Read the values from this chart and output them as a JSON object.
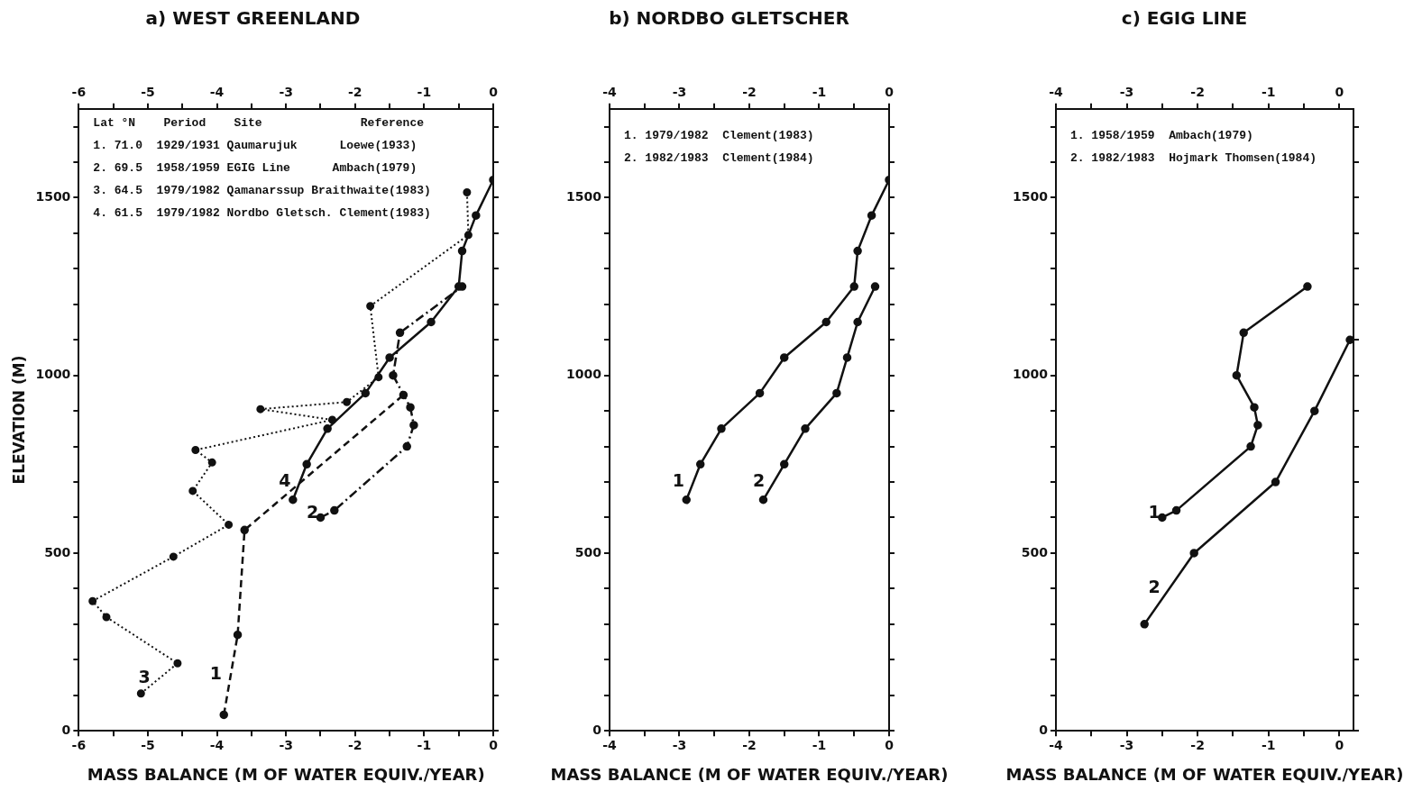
{
  "chart_data": [
    {
      "type": "line",
      "title": "a) WEST GREENLAND",
      "xlabel": "MASS BALANCE (M OF WATER EQUIV./YEAR)",
      "ylabel": "ELEVATION (M)",
      "marker": "circle",
      "xlim": [
        -6,
        0
      ],
      "xticks": [
        -6,
        {
          "value": -5.5,
          "label": null
        },
        -5,
        {
          "value": -4.5,
          "label": null
        },
        -4,
        {
          "value": -3.5,
          "label": null
        },
        -3,
        {
          "value": -2.5,
          "label": null
        },
        -2,
        {
          "value": -1.5,
          "label": null
        },
        -1,
        {
          "value": -0.5,
          "label": null
        },
        0
      ],
      "x2lim": [
        -6,
        0
      ],
      "x2ticks": [
        -6,
        {
          "value": -5.5,
          "label": null
        },
        -5,
        {
          "value": -4.5,
          "label": null
        },
        -4,
        {
          "value": -3.5,
          "label": null
        },
        -3,
        {
          "value": -2.5,
          "label": null
        },
        -2,
        {
          "value": -1.5,
          "label": null
        },
        -1,
        {
          "value": -0.5,
          "label": null
        },
        0
      ],
      "ylim": [
        0,
        1750
      ],
      "yticks": [
        0,
        {
          "value": 100,
          "label": null
        },
        {
          "value": 200,
          "label": null
        },
        {
          "value": 300,
          "label": null
        },
        {
          "value": 400,
          "label": null
        },
        500,
        {
          "value": 600,
          "label": null
        },
        {
          "value": 700,
          "label": null
        },
        {
          "value": 800,
          "label": null
        },
        {
          "value": 900,
          "label": null
        },
        1000,
        {
          "value": 1100,
          "label": null
        },
        {
          "value": 1200,
          "label": null
        },
        {
          "value": 1300,
          "label": null
        },
        {
          "value": 1400,
          "label": null
        },
        1500,
        {
          "value": 1600,
          "label": null
        },
        {
          "value": 1700,
          "label": null
        }
      ],
      "series": [
        {
          "name": "1",
          "color": "#111111",
          "line_style": "dashed",
          "x": [
            -3.9,
            -3.7,
            -3.6,
            -1.3
          ],
          "values": [
            45,
            270,
            565,
            945
          ]
        },
        {
          "name": "2",
          "color": "#111111",
          "line_style": "dashdot",
          "x": [
            -2.5,
            -2.3,
            -1.25,
            -1.15,
            -1.2,
            -1.45,
            -1.35,
            -0.45
          ],
          "values": [
            600,
            620,
            800,
            860,
            910,
            1000,
            1120,
            1250
          ]
        },
        {
          "name": "3",
          "color": "#111111",
          "line_style": "dotted",
          "x": [
            -5.1,
            -4.57,
            -5.6,
            -5.8,
            -4.63,
            -3.83,
            -4.35,
            -4.07,
            -4.31,
            -2.33,
            -3.37,
            -2.12,
            -1.66,
            -1.78,
            -0.36,
            -0.38
          ],
          "values": [
            105,
            190,
            320,
            365,
            490,
            580,
            675,
            755,
            790,
            875,
            905,
            925,
            995,
            1195,
            1395,
            1515
          ]
        },
        {
          "name": "4",
          "color": "#111111",
          "line_style": "solid",
          "x": [
            0,
            -0.25,
            -0.45,
            -0.5,
            -0.9,
            -1.5,
            -1.85,
            -2.4,
            -2.7,
            -2.9
          ],
          "values": [
            1550,
            1450,
            1350,
            1250,
            1150,
            1050,
            950,
            850,
            750,
            650
          ]
        }
      ],
      "annotations": [
        "Lat °N    Period    Site              Reference",
        "1. 71.0  1929/1931 Qaumarujuk      Loewe(1933)",
        "2. 69.5  1958/1959 EGIG Line      Ambach(1979)",
        "3. 64.5  1979/1982 Qamanarssup Braithwaite(1983)",
        "4. 61.5  1979/1982 Nordbo Gletsch. Clement(1983)"
      ]
    },
    {
      "type": "line",
      "title": "b) NORDBO GLETSCHER",
      "xlabel": "MASS BALANCE (M OF WATER EQUIV./YEAR)",
      "marker": "circle",
      "xlim": [
        -4,
        0
      ],
      "xticks": [
        -4,
        {
          "value": -3.5,
          "label": null
        },
        -3,
        {
          "value": -2.5,
          "label": null
        },
        -2,
        {
          "value": -1.5,
          "label": null
        },
        -1,
        {
          "value": -0.5,
          "label": null
        },
        0
      ],
      "x2lim": [
        -4,
        0
      ],
      "x2ticks": [
        -4,
        {
          "value": -3.5,
          "label": null
        },
        -3,
        {
          "value": -2.5,
          "label": null
        },
        -2,
        {
          "value": -1.5,
          "label": null
        },
        -1,
        {
          "value": -0.5,
          "label": null
        },
        0
      ],
      "ylim": [
        0,
        1750
      ],
      "yticks": [
        0,
        {
          "value": 100,
          "label": null
        },
        {
          "value": 200,
          "label": null
        },
        {
          "value": 300,
          "label": null
        },
        {
          "value": 400,
          "label": null
        },
        500,
        {
          "value": 600,
          "label": null
        },
        {
          "value": 700,
          "label": null
        },
        {
          "value": 800,
          "label": null
        },
        {
          "value": 900,
          "label": null
        },
        1000,
        {
          "value": 1100,
          "label": null
        },
        {
          "value": 1200,
          "label": null
        },
        {
          "value": 1300,
          "label": null
        },
        {
          "value": 1400,
          "label": null
        },
        1500,
        {
          "value": 1600,
          "label": null
        },
        {
          "value": 1700,
          "label": null
        }
      ],
      "series": [
        {
          "name": "1",
          "color": "#111111",
          "line_style": "solid",
          "x": [
            0,
            -0.25,
            -0.45,
            -0.5,
            -0.9,
            -1.5,
            -1.85,
            -2.4,
            -2.7,
            -2.9
          ],
          "values": [
            1550,
            1450,
            1350,
            1250,
            1150,
            1050,
            950,
            850,
            750,
            650
          ]
        },
        {
          "name": "2",
          "color": "#111111",
          "line_style": "solid",
          "x": [
            -0.2,
            -0.45,
            -0.6,
            -0.75,
            -1.2,
            -1.5,
            -1.8
          ],
          "values": [
            1250,
            1150,
            1050,
            950,
            850,
            750,
            650
          ]
        }
      ],
      "annotations": [
        "1. 1979/1982  Clement(1983)",
        "2. 1982/1983  Clement(1984)"
      ]
    },
    {
      "type": "line",
      "title": "c) EGIG LINE",
      "xlabel": "MASS BALANCE (M OF WATER EQUIV./YEAR)",
      "marker": "circle",
      "xlim": [
        -4,
        0.2
      ],
      "xticks": [
        -4,
        {
          "value": -3.5,
          "label": null
        },
        -3,
        {
          "value": -2.5,
          "label": null
        },
        -2,
        {
          "value": -1.5,
          "label": null
        },
        -1,
        {
          "value": -0.5,
          "label": null
        },
        0
      ],
      "x2lim": [
        -4,
        0.2
      ],
      "x2ticks": [
        -4,
        {
          "value": -3.5,
          "label": null
        },
        -3,
        {
          "value": -2.5,
          "label": null
        },
        -2,
        {
          "value": -1.5,
          "label": null
        },
        -1,
        {
          "value": -0.5,
          "label": null
        },
        0
      ],
      "ylim": [
        0,
        1750
      ],
      "yticks": [
        0,
        {
          "value": 100,
          "label": null
        },
        {
          "value": 200,
          "label": null
        },
        {
          "value": 300,
          "label": null
        },
        {
          "value": 400,
          "label": null
        },
        500,
        {
          "value": 600,
          "label": null
        },
        {
          "value": 700,
          "label": null
        },
        {
          "value": 800,
          "label": null
        },
        {
          "value": 900,
          "label": null
        },
        1000,
        {
          "value": 1100,
          "label": null
        },
        {
          "value": 1200,
          "label": null
        },
        {
          "value": 1300,
          "label": null
        },
        {
          "value": 1400,
          "label": null
        },
        1500,
        {
          "value": 1600,
          "label": null
        },
        {
          "value": 1700,
          "label": null
        }
      ],
      "series": [
        {
          "name": "1",
          "color": "#111111",
          "line_style": "solid",
          "x": [
            -0.45,
            -1.35,
            -1.45,
            -1.2,
            -1.15,
            -1.25,
            -2.3,
            -2.5
          ],
          "values": [
            1250,
            1120,
            1000,
            910,
            860,
            800,
            620,
            600
          ]
        },
        {
          "name": "2",
          "color": "#111111",
          "line_style": "solid",
          "x": [
            0.15,
            -0.35,
            -0.9,
            -2.05,
            -2.75
          ],
          "values": [
            1100,
            900,
            700,
            500,
            300
          ]
        }
      ],
      "annotations": [
        "1. 1958/1959  Ambach(1979)",
        "2. 1982/1983  Hojmark Thomsen(1984)"
      ]
    }
  ]
}
